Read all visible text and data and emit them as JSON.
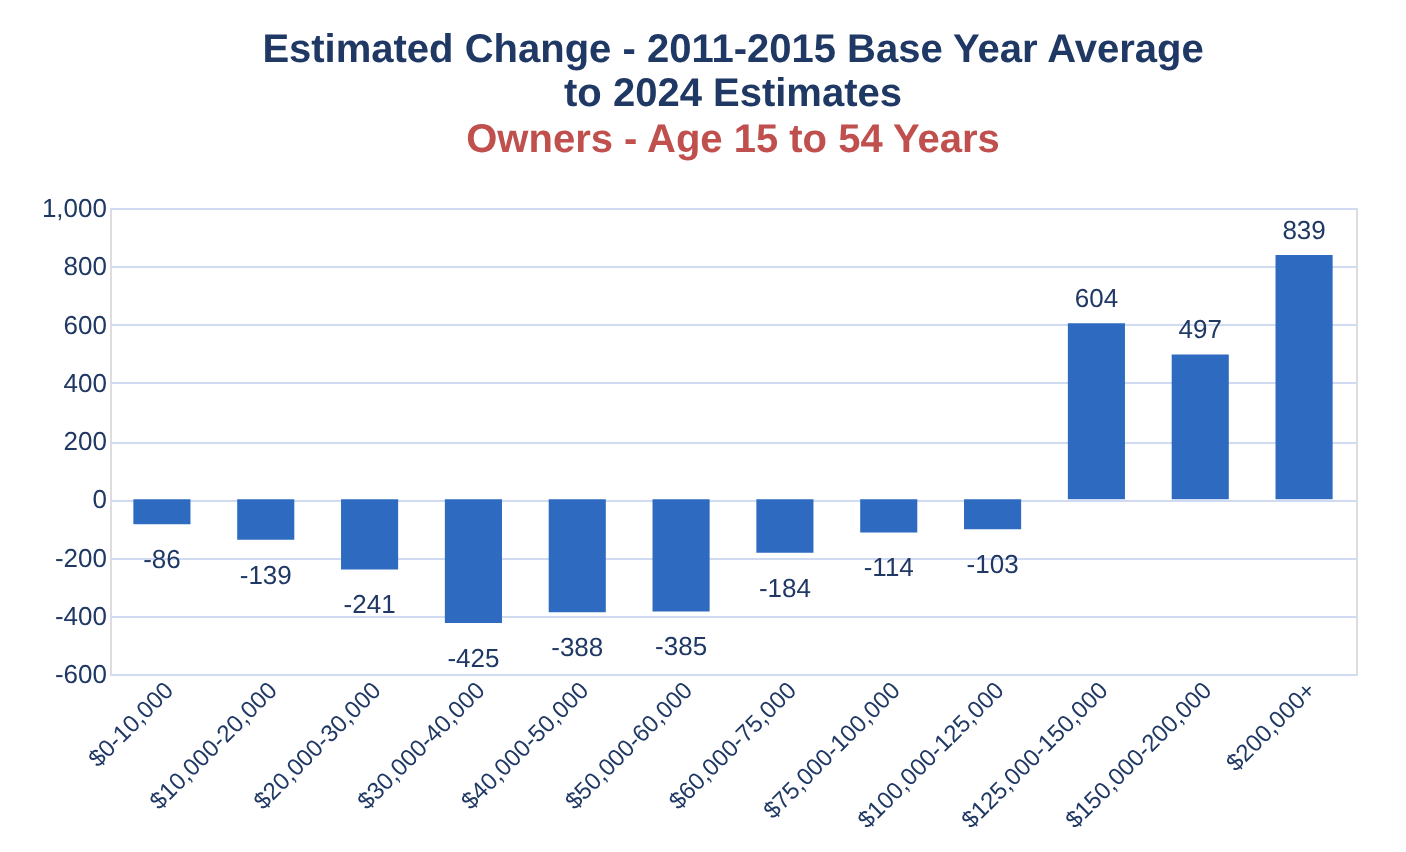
{
  "chart_data": {
    "type": "bar",
    "title": [
      "Estimated Change - 2011-2015 Base Year Average",
      "to 2024 Estimates"
    ],
    "subtitle": "Owners - Age 15 to 54 Years",
    "categories": [
      "$0-10,000",
      "$10,000-20,000",
      "$20,000-30,000",
      "$30,000-40,000",
      "$40,000-50,000",
      "$50,000-60,000",
      "$60,000-75,000",
      "$75,000-100,000",
      "$100,000-125,000",
      "$125,000-150,000",
      "$150,000-200,000",
      "$200,000+"
    ],
    "values": [
      -86,
      -139,
      -241,
      -425,
      -388,
      -385,
      -184,
      -114,
      -103,
      604,
      497,
      839
    ],
    "color": "#2e6bc0",
    "ylim": [
      -600,
      1000
    ],
    "yticks": [
      -600,
      -400,
      -200,
      0,
      200,
      400,
      600,
      800,
      {
        "value": 1000,
        "label": "1,000"
      }
    ],
    "grid": "y",
    "data_labels": true
  }
}
